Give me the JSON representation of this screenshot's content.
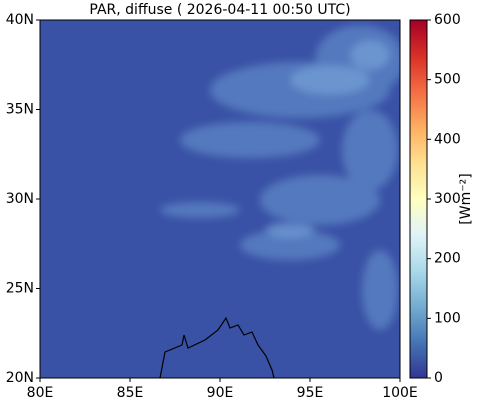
{
  "map": {
    "title": "PAR, diffuse ( 2026-04-11 00:50 UTC)",
    "xlim": [
      80,
      100
    ],
    "xticks": [
      {
        "value": 80,
        "label": "80E"
      },
      {
        "value": 85,
        "label": "85E"
      },
      {
        "value": 90,
        "label": "90E"
      },
      {
        "value": 95,
        "label": "95E"
      },
      {
        "value": 100,
        "label": "100E"
      }
    ],
    "ylim": [
      20,
      40
    ],
    "yticks": [
      {
        "value": 20,
        "label": "20N"
      },
      {
        "value": 25,
        "label": "25N"
      },
      {
        "value": 30,
        "label": "30N"
      },
      {
        "value": 35,
        "label": "35N"
      },
      {
        "value": 40,
        "label": "40N"
      }
    ],
    "colorbar": {
      "label": "[Wm⁻²]",
      "lim": [
        0,
        600
      ],
      "ticks": [
        0,
        100,
        200,
        300,
        400,
        500,
        600
      ]
    }
  }
}
